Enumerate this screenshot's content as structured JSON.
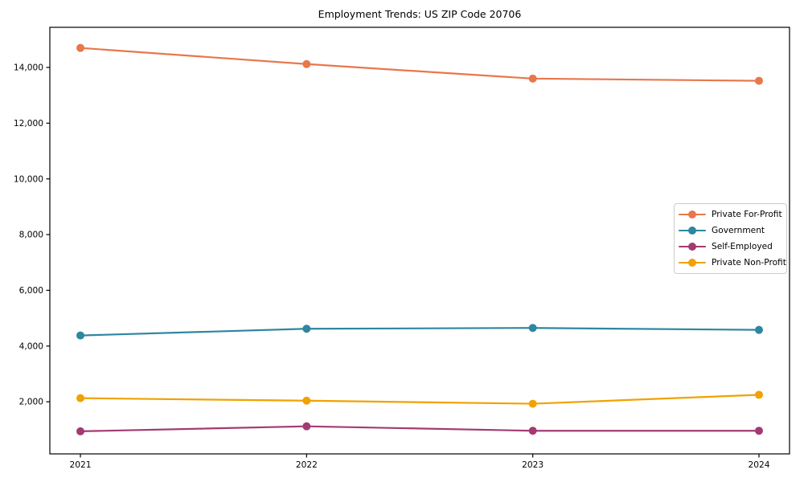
{
  "chart_data": {
    "type": "line",
    "title": "Employment Trends: US ZIP Code 20706",
    "xlabel": "",
    "ylabel": "",
    "x": [
      "2021",
      "2022",
      "2023",
      "2024"
    ],
    "series": [
      {
        "name": "Private For-Profit",
        "color": "#E8774B",
        "values": [
          14700,
          14120,
          13600,
          13520
        ]
      },
      {
        "name": "Government",
        "color": "#2E86A1",
        "values": [
          4380,
          4620,
          4650,
          4580
        ]
      },
      {
        "name": "Self-Employed",
        "color": "#A23B72",
        "values": [
          940,
          1120,
          960,
          960
        ]
      },
      {
        "name": "Private Non-Profit",
        "color": "#F0A202",
        "values": [
          2130,
          2040,
          1930,
          2250
        ]
      }
    ],
    "yticks": {
      "values": [
        2000,
        4000,
        6000,
        8000,
        10000,
        12000,
        14000
      ],
      "labels": [
        "2,000",
        "4,000",
        "6,000",
        "8,000",
        "10,000",
        "12,000",
        "14,000"
      ]
    },
    "ylim": [
      130,
      15440
    ],
    "grid": false,
    "legend_position": "right-middle",
    "axis_color": "#000000",
    "background": "#ffffff"
  }
}
